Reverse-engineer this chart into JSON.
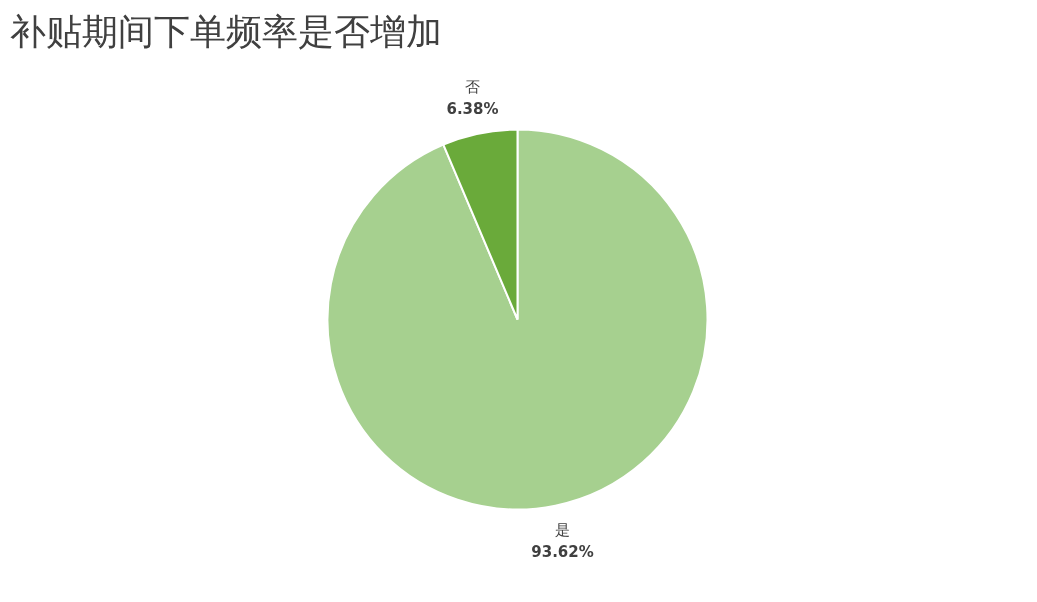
{
  "chart_data": {
    "type": "pie",
    "title": "补贴期间下单频率是否增加",
    "categories": [
      "是",
      "否"
    ],
    "values": [
      93.62,
      6.38
    ],
    "colors": [
      "#a6d08f",
      "#6aaa3a"
    ],
    "value_labels": [
      "93.62%",
      "6.38%"
    ],
    "legend": false
  }
}
